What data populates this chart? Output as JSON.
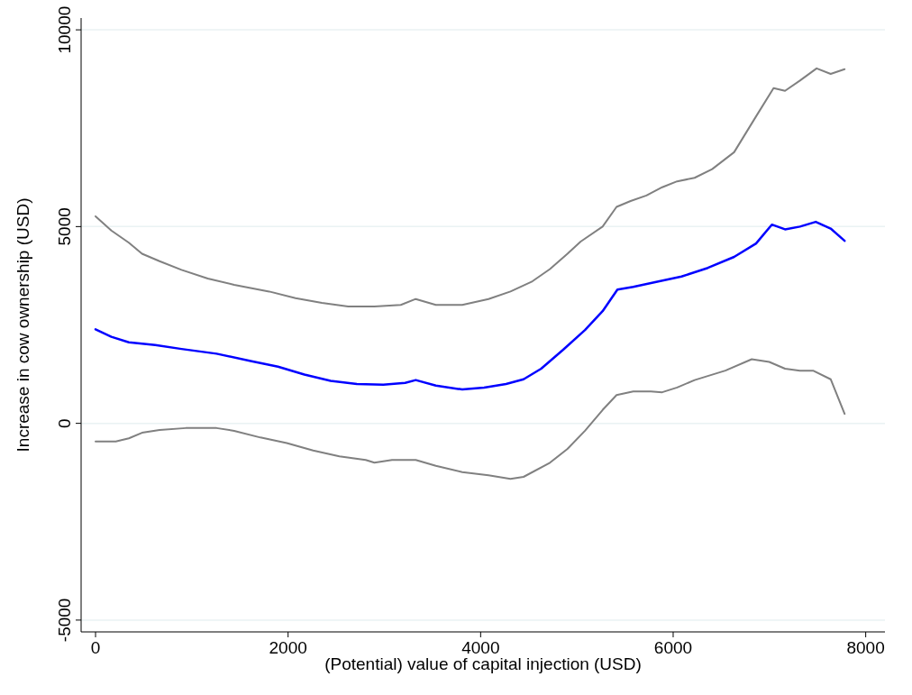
{
  "chart_data": {
    "type": "line",
    "xlabel": "(Potential) value of capital injection (USD)",
    "ylabel": "Increase in cow ownership (USD)",
    "xlim": [
      -150,
      8200
    ],
    "ylim": [
      -5300,
      10300
    ],
    "xticks": [
      0,
      2000,
      4000,
      6000,
      8000
    ],
    "yticks": [
      -5000,
      0,
      5000,
      10000
    ],
    "grid": "y",
    "marker": "none",
    "line_style": "solid",
    "series": [
      {
        "color": "#808080",
        "x": [
          0,
          164,
          346,
          483,
          665,
          893,
          1166,
          1440,
          1804,
          2077,
          2351,
          2624,
          2897,
          3171,
          3326,
          3535,
          3809,
          4082,
          4310,
          4538,
          4720,
          4902,
          5039,
          5267,
          5412,
          5558,
          5722,
          5886,
          6041,
          6223,
          6405,
          6633,
          6861,
          7043,
          7162,
          7317,
          7490,
          7636,
          7781
        ],
        "values": [
          5260,
          4900,
          4590,
          4310,
          4120,
          3900,
          3680,
          3520,
          3350,
          3180,
          3060,
          2970,
          2970,
          3010,
          3160,
          3010,
          3010,
          3160,
          3350,
          3610,
          3920,
          4310,
          4620,
          5000,
          5500,
          5650,
          5790,
          6000,
          6150,
          6240,
          6460,
          6890,
          7800,
          8520,
          8450,
          8710,
          9020,
          8880,
          9000
        ]
      },
      {
        "color": "#0000ff",
        "x": [
          0,
          164,
          346,
          620,
          893,
          1257,
          1622,
          1895,
          2169,
          2442,
          2715,
          2989,
          3216,
          3326,
          3535,
          3809,
          4036,
          4264,
          4446,
          4629,
          4857,
          5084,
          5267,
          5421,
          5585,
          5813,
          6087,
          6360,
          6633,
          6861,
          7025,
          7162,
          7317,
          7481,
          7636,
          7781
        ],
        "values": [
          2390,
          2200,
          2060,
          1990,
          1890,
          1770,
          1580,
          1440,
          1240,
          1080,
          1000,
          980,
          1030,
          1100,
          960,
          860,
          910,
          1000,
          1120,
          1390,
          1870,
          2370,
          2850,
          3400,
          3470,
          3590,
          3730,
          3950,
          4230,
          4570,
          5050,
          4930,
          5000,
          5120,
          4950,
          4640
        ]
      },
      {
        "color": "#808080",
        "x": [
          0,
          210,
          346,
          483,
          665,
          938,
          1257,
          1440,
          1713,
          1986,
          2260,
          2533,
          2806,
          2897,
          3080,
          3326,
          3535,
          3809,
          4082,
          4310,
          4446,
          4720,
          4902,
          5084,
          5267,
          5412,
          5585,
          5768,
          5886,
          6041,
          6223,
          6542,
          6816,
          6998,
          7162,
          7317,
          7453,
          7636,
          7781
        ],
        "values": [
          -460,
          -460,
          -380,
          -240,
          -170,
          -120,
          -120,
          -190,
          -360,
          -500,
          -690,
          -840,
          -930,
          -1000,
          -930,
          -930,
          -1080,
          -1240,
          -1320,
          -1410,
          -1360,
          -1000,
          -650,
          -190,
          340,
          720,
          810,
          810,
          790,
          910,
          1100,
          1340,
          1630,
          1560,
          1390,
          1340,
          1340,
          1120,
          240
        ]
      }
    ]
  }
}
